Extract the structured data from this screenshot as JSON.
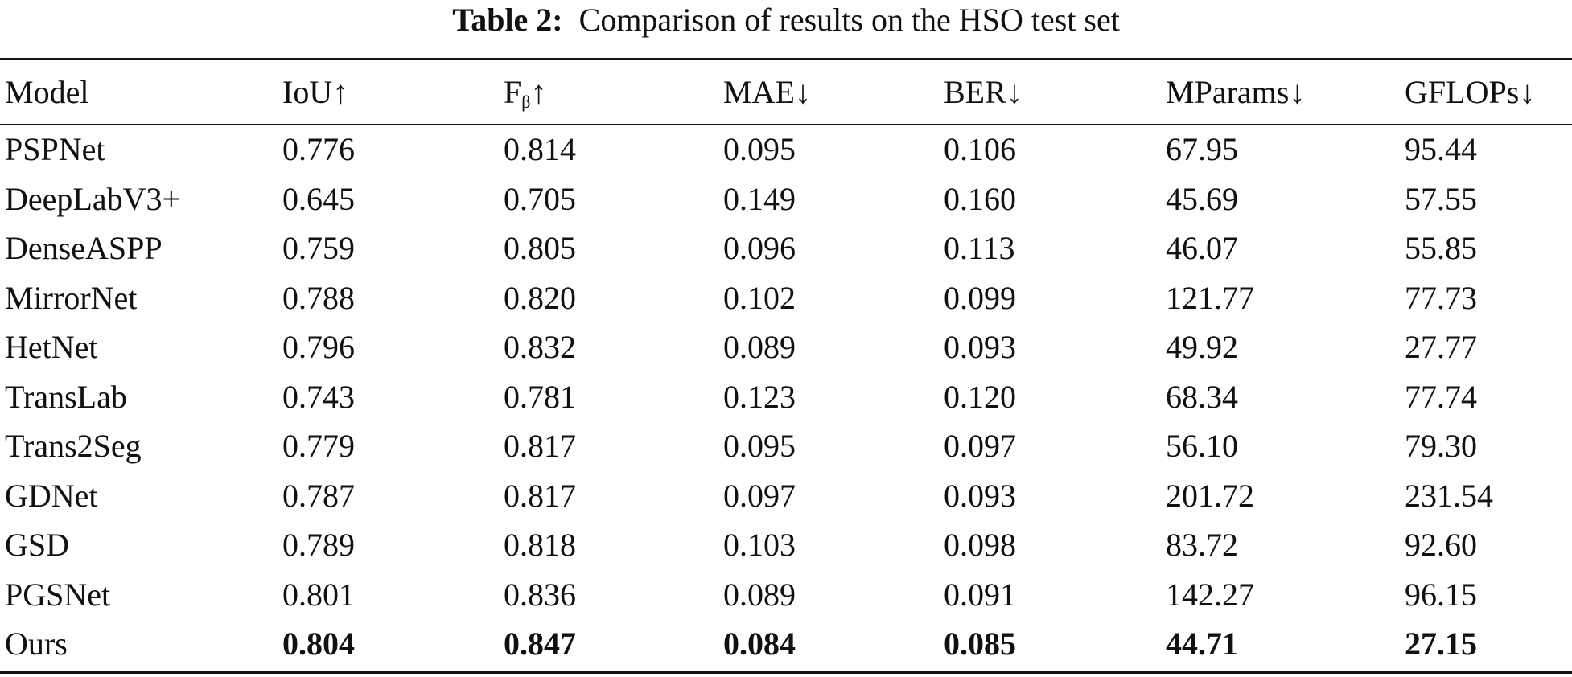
{
  "caption": {
    "label": "Table 2:",
    "text": "Comparison of results on the HSO test set"
  },
  "table": {
    "headers": {
      "model": "Model",
      "iou": "IoU↑",
      "fbeta_base": "F",
      "fbeta_sub": "β",
      "fbeta_arrow": "↑",
      "mae": "MAE↓",
      "ber": "BER↓",
      "mparams": "MParams↓",
      "gflops": "GFLOPs↓"
    },
    "rows": [
      {
        "model": "PSPNet",
        "iou": "0.776",
        "fbeta": "0.814",
        "mae": "0.095",
        "ber": "0.106",
        "mparams": "67.95",
        "gflops": "95.44"
      },
      {
        "model": "DeepLabV3+",
        "iou": "0.645",
        "fbeta": "0.705",
        "mae": "0.149",
        "ber": "0.160",
        "mparams": "45.69",
        "gflops": "57.55"
      },
      {
        "model": "DenseASPP",
        "iou": "0.759",
        "fbeta": "0.805",
        "mae": "0.096",
        "ber": "0.113",
        "mparams": "46.07",
        "gflops": "55.85"
      },
      {
        "model": "MirrorNet",
        "iou": "0.788",
        "fbeta": "0.820",
        "mae": "0.102",
        "ber": "0.099",
        "mparams": "121.77",
        "gflops": "77.73"
      },
      {
        "model": "HetNet",
        "iou": "0.796",
        "fbeta": "0.832",
        "mae": "0.089",
        "ber": "0.093",
        "mparams": "49.92",
        "gflops": "27.77"
      },
      {
        "model": "TransLab",
        "iou": "0.743",
        "fbeta": "0.781",
        "mae": "0.123",
        "ber": "0.120",
        "mparams": "68.34",
        "gflops": "77.74"
      },
      {
        "model": "Trans2Seg",
        "iou": "0.779",
        "fbeta": "0.817",
        "mae": "0.095",
        "ber": "0.097",
        "mparams": "56.10",
        "gflops": "79.30"
      },
      {
        "model": "GDNet",
        "iou": "0.787",
        "fbeta": "0.817",
        "mae": "0.097",
        "ber": "0.093",
        "mparams": "201.72",
        "gflops": "231.54"
      },
      {
        "model": "GSD",
        "iou": "0.789",
        "fbeta": "0.818",
        "mae": "0.103",
        "ber": "0.098",
        "mparams": "83.72",
        "gflops": "92.60"
      },
      {
        "model": "PGSNet",
        "iou": "0.801",
        "fbeta": "0.836",
        "mae": "0.089",
        "ber": "0.091",
        "mparams": "142.27",
        "gflops": "96.15"
      },
      {
        "model": "Ours",
        "iou": "0.804",
        "fbeta": "0.847",
        "mae": "0.084",
        "ber": "0.085",
        "mparams": "44.71",
        "gflops": "27.15"
      }
    ]
  }
}
